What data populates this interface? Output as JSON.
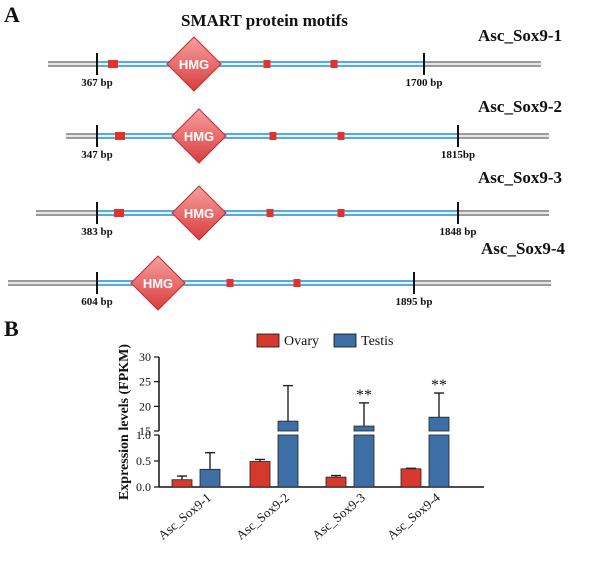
{
  "panelA": {
    "letter": "A",
    "title": "SMART protein motifs",
    "motif_label": "HMG",
    "genes": [
      {
        "name": "Asc_Sox9-1",
        "start": "367 bp",
        "end": "1700 bp"
      },
      {
        "name": "Asc_Sox9-2",
        "start": "347 bp",
        "end": "1815bp"
      },
      {
        "name": "Asc_Sox9-3",
        "start": "383 bp",
        "end": "1848 bp"
      },
      {
        "name": "Asc_Sox9-4",
        "start": "604 bp",
        "end": "1895 bp"
      }
    ]
  },
  "panelB": {
    "letter": "B",
    "chart_data": {
      "type": "bar",
      "categories": [
        "Asc_Sox9-1",
        "Asc_Sox9-2",
        "Asc_Sox9-3",
        "Asc_Sox9-4"
      ],
      "ylabel": "Expression levels (FPKM)",
      "axis_break": true,
      "lower_ylim": [
        0,
        1.0
      ],
      "upper_ylim": [
        0,
        30
      ],
      "yticks_lower": [
        "0.0",
        "0.5",
        "1.0"
      ],
      "yticks_upper": [
        "15",
        "20",
        "25",
        "30"
      ],
      "legend_position": "top",
      "series": [
        {
          "name": "Ovary",
          "color": "#d63a2c",
          "values": [
            0.14,
            0.49,
            0.19,
            0.35
          ],
          "errors": [
            0.07,
            0.04,
            0.03,
            0.01
          ]
        },
        {
          "name": "Testis",
          "color": "#3d6ea6",
          "values": [
            0.34,
            17.0,
            16.0,
            17.8
          ],
          "errors": [
            0.32,
            7.2,
            4.7,
            4.9
          ]
        }
      ],
      "significance": [
        "",
        "",
        "**",
        "**"
      ]
    }
  }
}
